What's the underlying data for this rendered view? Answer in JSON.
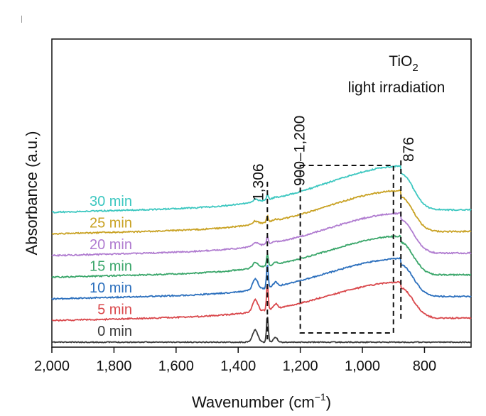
{
  "chart_data": {
    "type": "line",
    "title": "TiO",
    "title_subscript": "2",
    "subtitle": "light irradiation",
    "xlabel_main": "Wavenumber (cm",
    "xlabel_sup": "−1",
    "xlabel_close": ")",
    "ylabel": "Absorbance (a.u.)",
    "xlim": [
      2000,
      650
    ],
    "x_reversed": true,
    "x_ticks": [
      {
        "value": 2000,
        "label": "2,000"
      },
      {
        "value": 1800,
        "label": "1,800"
      },
      {
        "value": 1600,
        "label": "1,600"
      },
      {
        "value": 1400,
        "label": "1,400"
      },
      {
        "value": 1200,
        "label": "1,200"
      },
      {
        "value": 1000,
        "label": "1,000"
      },
      {
        "value": 800,
        "label": "800"
      }
    ],
    "series": [
      {
        "name": "0 min",
        "color": "#3a3a3a",
        "offset": 0.0,
        "broad": 0.0,
        "sharp": 1.0
      },
      {
        "name": "5 min",
        "color": "#d9474b",
        "offset": 1.0,
        "broad": 0.95,
        "sharp": 1.0
      },
      {
        "name": "10 min",
        "color": "#2b6fbd",
        "offset": 2.0,
        "broad": 1.0,
        "sharp": 0.9
      },
      {
        "name": "15 min",
        "color": "#3aa66a",
        "offset": 3.0,
        "broad": 1.02,
        "sharp": 0.45
      },
      {
        "name": "20 min",
        "color": "#b07cd0",
        "offset": 4.0,
        "broad": 1.05,
        "sharp": 0.3
      },
      {
        "name": "25 min",
        "color": "#c9a224",
        "offset": 5.0,
        "broad": 1.08,
        "sharp": 0.25
      },
      {
        "name": "30 min",
        "color": "#3cc7c0",
        "offset": 6.0,
        "broad": 1.15,
        "sharp": 0.2
      }
    ],
    "annotations": [
      {
        "text": "1,306",
        "x": 1306
      },
      {
        "text": "900–1,200",
        "x_range": [
          1200,
          900
        ]
      },
      {
        "text": "876",
        "x": 876
      }
    ]
  }
}
